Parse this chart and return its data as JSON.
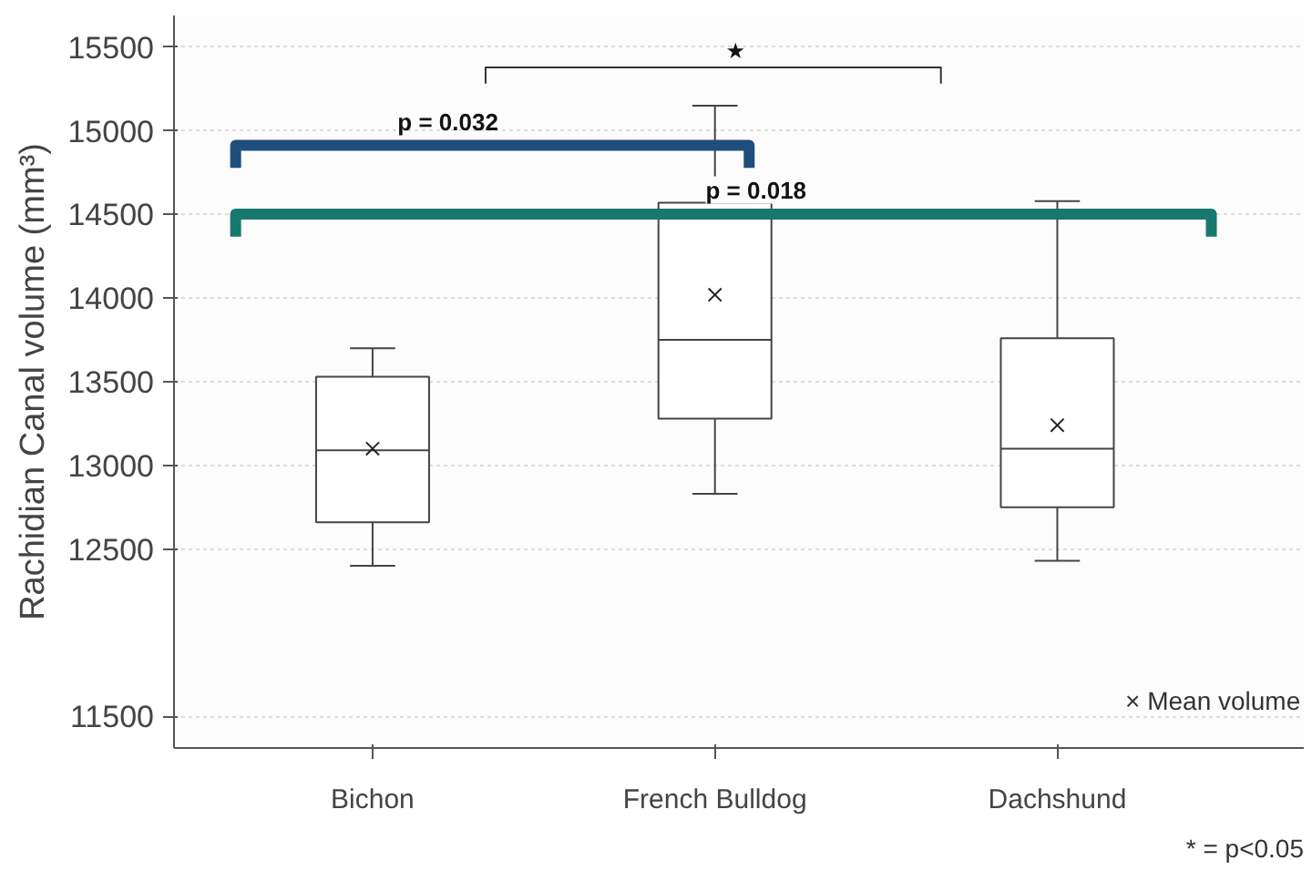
{
  "chart_data": {
    "type": "box",
    "ylabel": "Rachidian Canal volume (mm³)",
    "categories": [
      "Bichon",
      "French Bulldog",
      "Dachshund"
    ],
    "boxes": [
      {
        "low": 12400,
        "q1": 12660,
        "median": 13090,
        "q3": 13530,
        "high": 13700,
        "mean": 13100
      },
      {
        "low": 12830,
        "q1": 13280,
        "median": 13750,
        "q3": 14570,
        "high": 15150,
        "mean": 14020
      },
      {
        "low": 12430,
        "q1": 12750,
        "median": 13100,
        "q3": 13760,
        "high": 14580,
        "mean": 13240
      }
    ],
    "ylim": [
      11310,
      15690
    ],
    "yticks": [
      11500,
      12500,
      13000,
      13500,
      14000,
      14500,
      15000,
      15500
    ],
    "grid": "y",
    "annotations": [
      "★",
      "p = 0.032",
      "p = 0.018",
      "× Mean volume",
      "* = p<0.05"
    ]
  }
}
